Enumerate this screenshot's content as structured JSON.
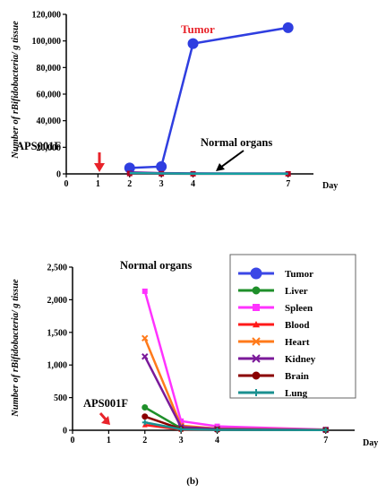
{
  "chart_data": [
    {
      "type": "line",
      "ylabel": "Number of rBifidobacteria/ g tissue",
      "xlabel": "Day",
      "xlim": [
        0,
        7.8
      ],
      "ylim": [
        0,
        120000
      ],
      "x_ticks": [
        0,
        1,
        2,
        3,
        4,
        7
      ],
      "y_ticks": [
        0,
        20000,
        40000,
        60000,
        80000,
        100000,
        120000
      ],
      "y_tick_labels": [
        "0",
        "20,000",
        "40,000",
        "60,000",
        "80,000",
        "100,000",
        "120,000"
      ],
      "legend": "none",
      "grid": false,
      "series": [
        {
          "color": "#2f3ee0",
          "marker": "circle",
          "x": [
            2,
            3,
            4,
            7
          ],
          "y": [
            4500,
            5500,
            98000,
            110000
          ]
        },
        {
          "color": "#b00020",
          "marker": "square",
          "x": [
            2,
            3,
            4,
            7
          ],
          "y": [
            300,
            150,
            80,
            50
          ]
        },
        {
          "color": "#6a1b9a",
          "marker": "none",
          "x": [
            2,
            3,
            4,
            7
          ],
          "y": [
            1200,
            600,
            400,
            300
          ]
        },
        {
          "color": "#16a0a0",
          "marker": "none",
          "x": [
            2,
            3,
            4,
            7
          ],
          "y": [
            600,
            300,
            200,
            150
          ]
        }
      ],
      "annotations": [
        {
          "text": "Tumor",
          "color": "#e8232a"
        },
        {
          "text": "Normal organs",
          "color": "#000000"
        },
        {
          "text": "APS001F",
          "color": "#000000",
          "arrow_color": "#e8232a",
          "x": 1
        }
      ]
    },
    {
      "type": "line",
      "ylabel": "Number of rBifidobacteria/ g tissue",
      "xlabel": "Day",
      "xlim": [
        0,
        7.8
      ],
      "ylim": [
        0,
        2500
      ],
      "x_ticks": [
        0,
        1,
        2,
        3,
        4,
        7
      ],
      "y_ticks": [
        0,
        500,
        1000,
        1500,
        2000,
        2500
      ],
      "y_tick_labels": [
        "0",
        "500",
        "1,000",
        "1,500",
        "2,000",
        "2,500"
      ],
      "legend": "right",
      "grid": false,
      "series": [
        {
          "name": "Tumor",
          "color": "#3b47e6",
          "marker": "circle",
          "x": [],
          "y": []
        },
        {
          "name": "Liver",
          "color": "#1f8f2a",
          "marker": "circle",
          "x": [
            2,
            3,
            4,
            7
          ],
          "y": [
            350,
            30,
            10,
            5
          ]
        },
        {
          "name": "Spleen",
          "color": "#ff33ff",
          "marker": "square",
          "x": [
            2,
            3,
            4,
            7
          ],
          "y": [
            2130,
            140,
            60,
            10
          ]
        },
        {
          "name": "Blood",
          "color": "#ff1a1a",
          "marker": "triangle",
          "x": [
            2,
            3,
            4,
            7
          ],
          "y": [
            80,
            10,
            5,
            3
          ]
        },
        {
          "name": "Heart",
          "color": "#ff7a1a",
          "marker": "x",
          "x": [
            2,
            3,
            4,
            7
          ],
          "y": [
            1410,
            70,
            25,
            8
          ]
        },
        {
          "name": "Kidney",
          "color": "#7b1a9a",
          "marker": "x",
          "x": [
            2,
            3,
            4,
            7
          ],
          "y": [
            1130,
            50,
            20,
            6
          ]
        },
        {
          "name": "Brain",
          "color": "#8b0000",
          "marker": "circle",
          "x": [
            2,
            3,
            4,
            7
          ],
          "y": [
            210,
            20,
            8,
            4
          ]
        },
        {
          "name": "Lung",
          "color": "#1a9090",
          "marker": "plus",
          "x": [
            2,
            3,
            4,
            7
          ],
          "y": [
            120,
            15,
            6,
            3
          ]
        }
      ],
      "annotations": [
        {
          "text": "Normal organs",
          "color": "#000000"
        },
        {
          "text": "APS001F",
          "color": "#000000",
          "arrow_color": "#e8232a",
          "x": 1
        }
      ]
    }
  ],
  "caption": "(b)"
}
